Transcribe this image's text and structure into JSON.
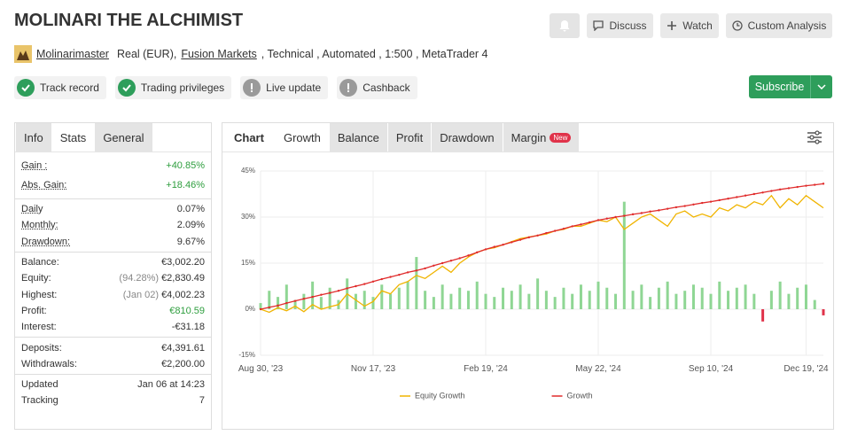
{
  "header": {
    "title": "MOLINARI THE ALCHIMIST",
    "buttons": [
      "Discuss",
      "Watch",
      "Custom Analysis"
    ],
    "user": "Molinarimaster",
    "account_info": [
      "Real (EUR),",
      "Fusion Markets",
      ", Technical , Automated , 1:500 , MetaTrader 4"
    ],
    "badges": [
      {
        "label": "Track record",
        "ok": true
      },
      {
        "label": "Trading privileges",
        "ok": true
      },
      {
        "label": "Live update",
        "ok": false
      },
      {
        "label": "Cashback",
        "ok": false
      }
    ],
    "subscribe": "Subscribe"
  },
  "stats_panel": {
    "tabs": [
      "Info",
      "Stats",
      "General"
    ],
    "active_tab": 1,
    "groups": [
      [
        {
          "label": "Gain :",
          "value": "+40.85%",
          "color": "#2e9e3e"
        },
        {
          "label": "Abs. Gain:",
          "value": "+18.46%",
          "color": "#2e9e3e"
        }
      ],
      [
        {
          "label": "Daily",
          "value": "0.07%"
        },
        {
          "label": "Monthly:",
          "value": "2.09%"
        },
        {
          "label": "Drawdown:",
          "value": "9.67%"
        }
      ],
      [
        {
          "label": "Balance:",
          "value": "€3,002.20"
        },
        {
          "label": "Equity:",
          "note": "(94.28%)",
          "value": "€2,830.49"
        },
        {
          "label": "Highest:",
          "note": "(Jan 02)",
          "value": "€4,002.23"
        },
        {
          "label": "Profit:",
          "value": "€810.59",
          "color": "#2e9e3e"
        },
        {
          "label": "Interest:",
          "value": "-€31.18"
        }
      ],
      [
        {
          "label": "Deposits:",
          "value": "€4,391.61"
        },
        {
          "label": "Withdrawals:",
          "value": "€2,200.00"
        }
      ],
      [
        {
          "label": "Updated",
          "value": "Jan 06 at 14:23"
        },
        {
          "label": "Tracking",
          "value": "7"
        }
      ]
    ]
  },
  "chart_tabs": {
    "label": "Chart",
    "tabs": [
      "Growth",
      "Balance",
      "Profit",
      "Drawdown",
      "Margin"
    ],
    "active_tab": 0,
    "new_badge": "New"
  },
  "chart_data": {
    "type": "line",
    "categories": [
      "Aug 30, '23",
      null,
      null,
      null,
      null,
      null,
      null,
      null,
      null,
      null,
      null,
      null,
      null,
      "Nov 17, '23",
      null,
      null,
      null,
      null,
      null,
      null,
      null,
      null,
      null,
      null,
      null,
      null,
      "Feb 19, '24",
      null,
      null,
      null,
      null,
      null,
      null,
      null,
      null,
      null,
      null,
      null,
      null,
      "May 22, '24",
      null,
      null,
      null,
      null,
      null,
      null,
      null,
      null,
      null,
      null,
      null,
      null,
      "Sep 10, '24",
      null,
      null,
      null,
      null,
      null,
      null,
      null,
      null,
      null,
      null,
      "Dec 19, '24",
      null,
      null
    ],
    "series": [
      {
        "type": "bar",
        "color": "#8fd694",
        "negative_color": "#e0334a",
        "values": [
          2,
          6,
          4,
          8,
          3,
          5,
          9,
          4,
          7,
          3,
          10,
          5,
          6,
          4,
          8,
          5,
          7,
          9,
          17,
          6,
          4,
          8,
          5,
          7,
          6,
          9,
          5,
          4,
          7,
          6,
          8,
          5,
          10,
          6,
          4,
          7,
          5,
          8,
          6,
          9,
          7,
          5,
          35,
          6,
          8,
          4,
          7,
          9,
          5,
          6,
          8,
          7,
          5,
          9,
          6,
          7,
          8,
          5,
          -4,
          6,
          9,
          5,
          7,
          8,
          3,
          -2
        ]
      },
      {
        "name": "Equity Growth",
        "type": "line",
        "color": "#f0b400",
        "values": [
          0,
          -1,
          0.5,
          -0.5,
          1,
          -0.8,
          1.5,
          0,
          0.8,
          1.5,
          5,
          3,
          1,
          2.5,
          6,
          5,
          8,
          9,
          11,
          10,
          12,
          14,
          12,
          15,
          17,
          18.5,
          19.5,
          20,
          21,
          22,
          23,
          23.5,
          24,
          24.5,
          25.5,
          26,
          27,
          27,
          28,
          29,
          28.5,
          30,
          26,
          28,
          30,
          31,
          29,
          27,
          31,
          32,
          30,
          31,
          30,
          33,
          32,
          34,
          33,
          35,
          34,
          37,
          33,
          36,
          34,
          37,
          35,
          33
        ]
      },
      {
        "name": "Growth",
        "type": "line",
        "color": "#e02b2b",
        "values": [
          0,
          0.6,
          1.2,
          2,
          2.7,
          3.4,
          4,
          4.7,
          5.3,
          6,
          6.8,
          7.5,
          8.2,
          9,
          9.8,
          10.5,
          11.2,
          12,
          12.6,
          13.3,
          14.2,
          15,
          15.8,
          16.6,
          17.5,
          18.5,
          19.5,
          20.3,
          21,
          21.8,
          22.6,
          23.4,
          24,
          24.8,
          25.5,
          26.2,
          27,
          27.6,
          28.3,
          29,
          29.5,
          30,
          30.4,
          30.9,
          31.3,
          31.8,
          32.2,
          32.7,
          33.2,
          33.6,
          34.1,
          34.6,
          35,
          35.5,
          36,
          36.5,
          37,
          37.5,
          38,
          38.5,
          39,
          39.4,
          39.8,
          40.2,
          40.5,
          40.85
        ]
      }
    ],
    "ylim": [
      -15,
      45
    ],
    "yticks": [
      {
        "value": -15,
        "label": "-15%"
      },
      {
        "value": 0,
        "label": "0%"
      },
      {
        "value": 15,
        "label": "15%"
      },
      {
        "value": 30,
        "label": "30%"
      },
      {
        "value": 45,
        "label": "45%"
      }
    ],
    "grid": true,
    "legend": "bottom"
  }
}
